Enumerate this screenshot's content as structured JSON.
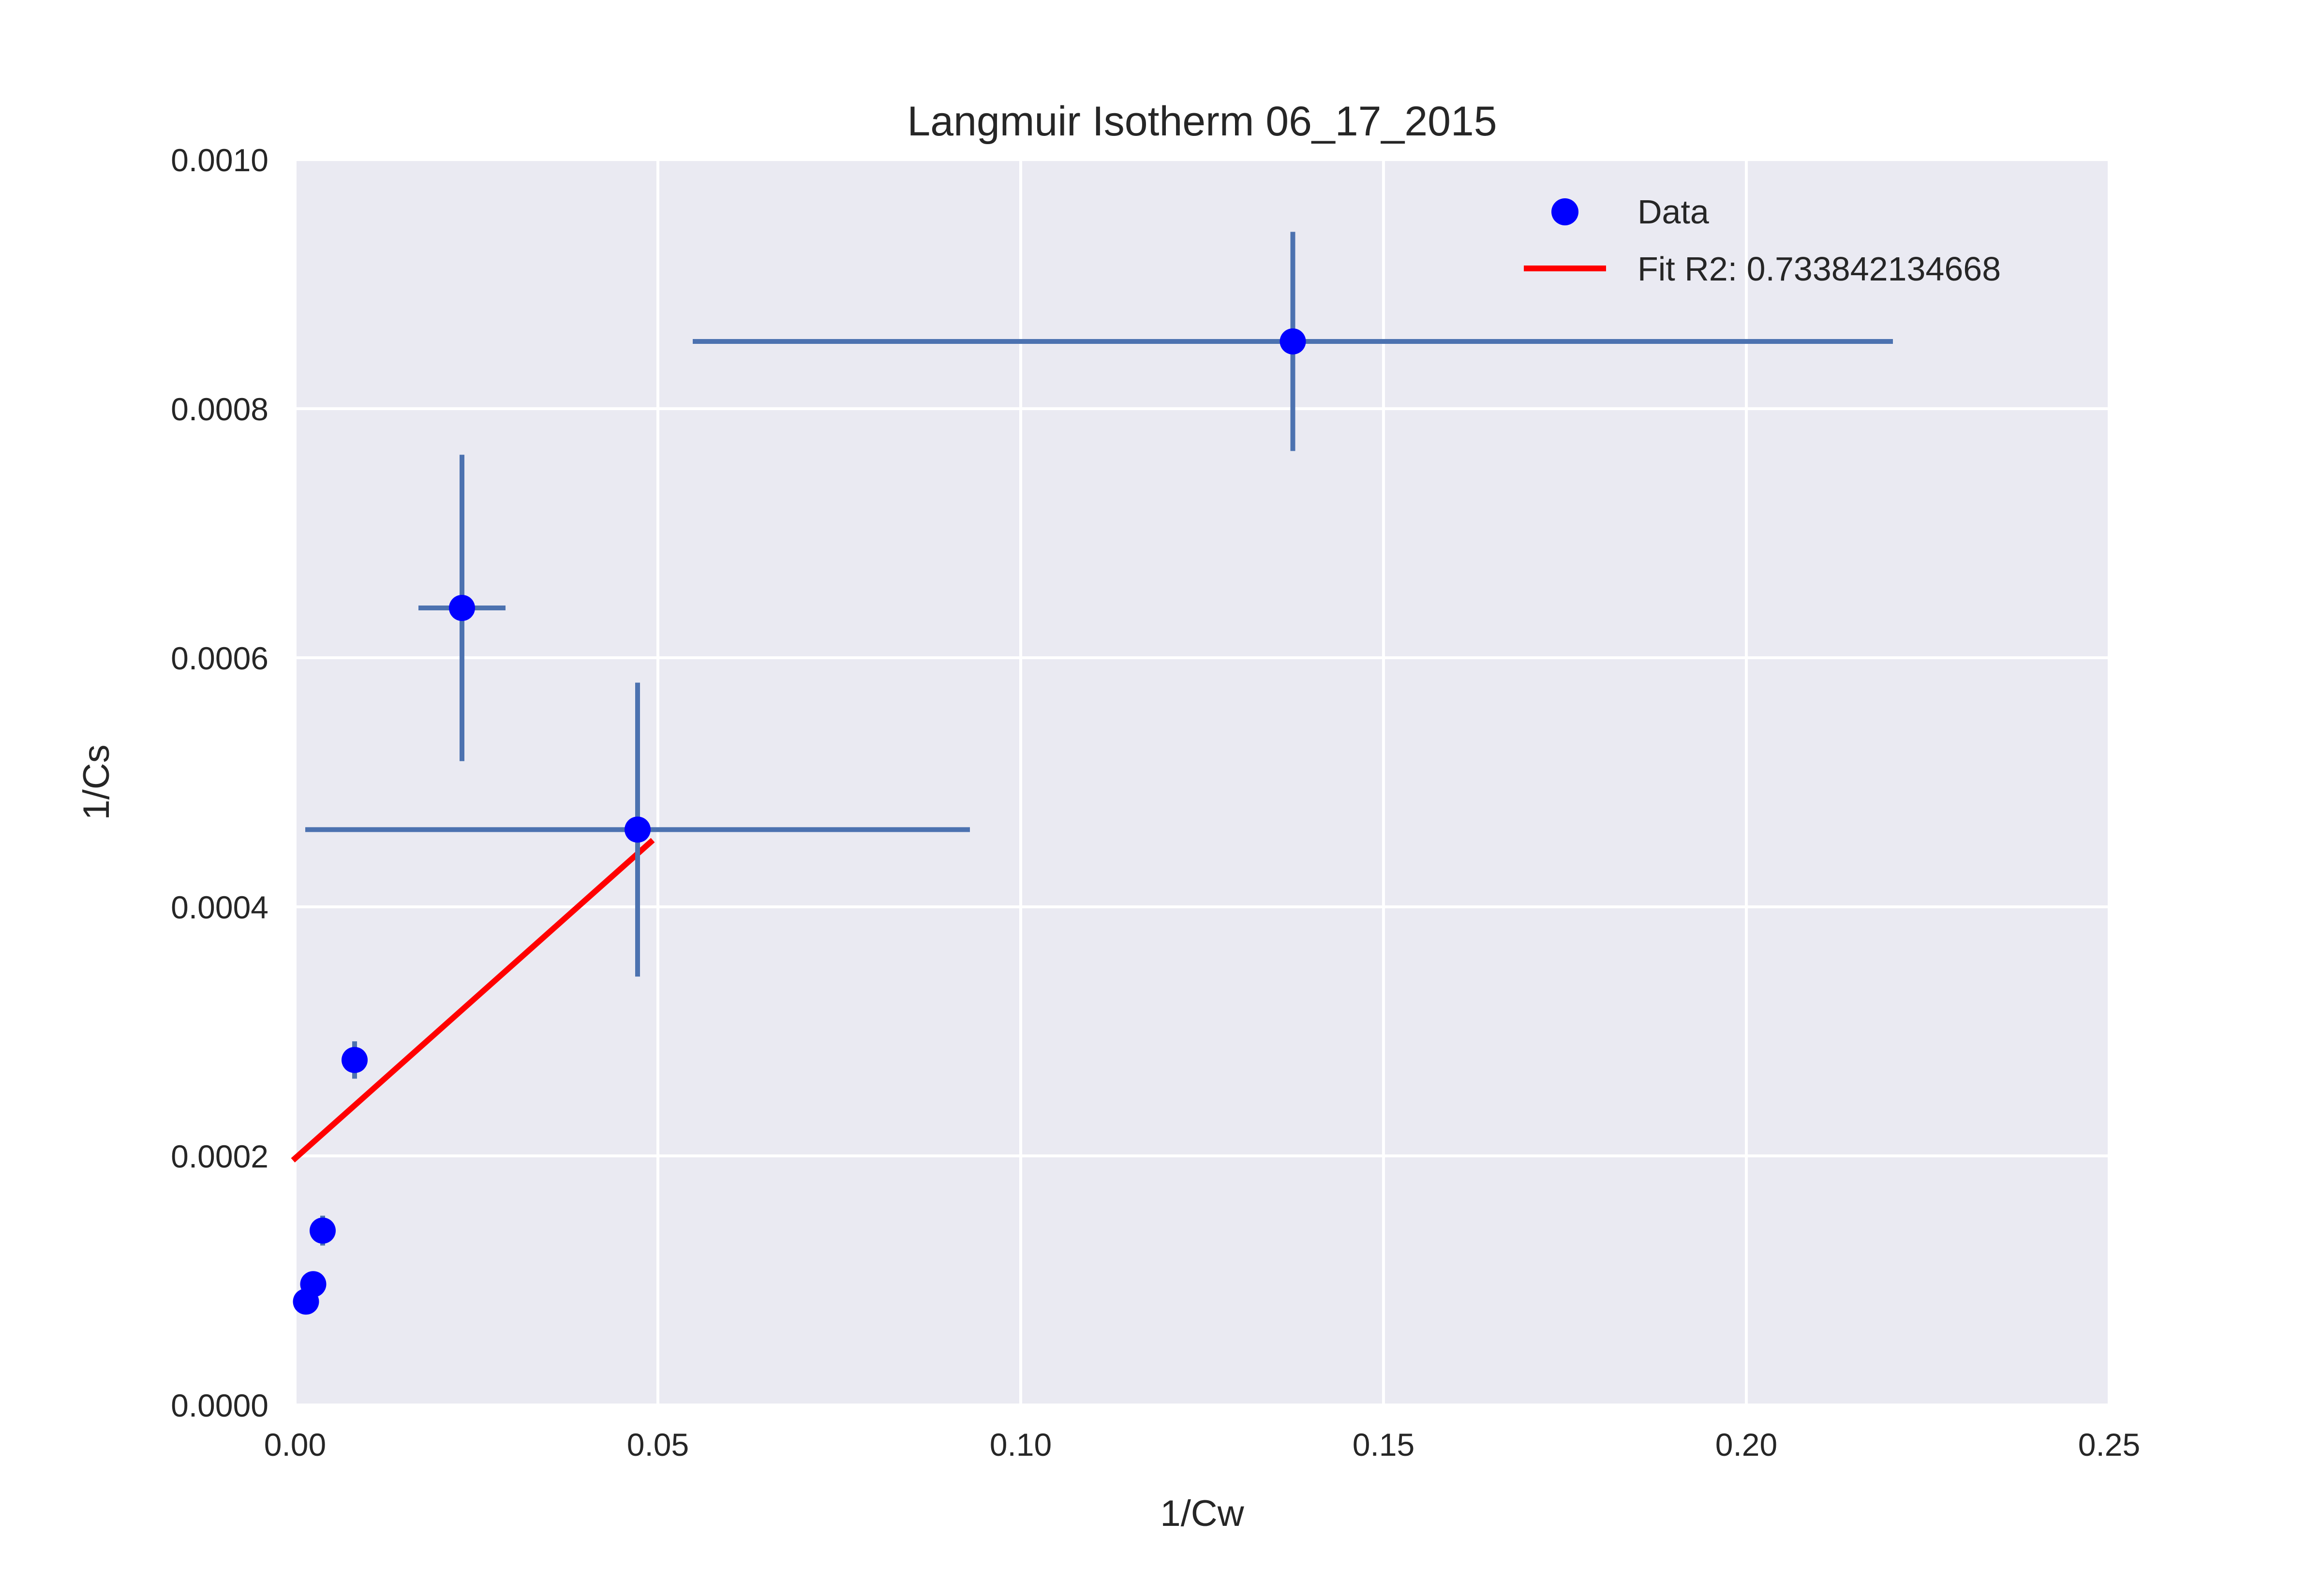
{
  "chart_data": {
    "type": "scatter",
    "title": "Langmuir Isotherm 06_17_2015",
    "xlabel": "1/Cw",
    "ylabel": "1/Cs",
    "xlim": [
      0,
      0.25
    ],
    "ylim": [
      0,
      0.001
    ],
    "x_ticks": [
      "0.00",
      "0.05",
      "0.10",
      "0.15",
      "0.20",
      "0.25"
    ],
    "y_ticks": [
      "0.0000",
      "0.0002",
      "0.0004",
      "0.0006",
      "0.0008",
      "0.0010"
    ],
    "grid": true,
    "legend_position": "top-right",
    "series": [
      {
        "name": "Data",
        "kind": "points_with_errorbars",
        "color": "#0000ff",
        "errorbar_color": "#4c72b0",
        "points": [
          {
            "x": 0.0015,
            "y": 8.3e-05,
            "xerr": 0.0002,
            "yerr": 5e-06
          },
          {
            "x": 0.0025,
            "y": 9.7e-05,
            "xerr": 0.0003,
            "yerr": 7e-06
          },
          {
            "x": 0.0038,
            "y": 0.00014,
            "xerr": 0.0005,
            "yerr": 1.2e-05
          },
          {
            "x": 0.0082,
            "y": 0.000277,
            "xerr": 0.0008,
            "yerr": 1.5e-05
          },
          {
            "x": 0.023,
            "y": 0.00064,
            "xerr": 0.006,
            "yerr": 0.000123
          },
          {
            "x": 0.0472,
            "y": 0.000462,
            "xerr": 0.0458,
            "yerr": 0.000118
          },
          {
            "x": 0.1375,
            "y": 0.000854,
            "xerr": 0.0827,
            "yerr": 8.8e-05
          }
        ]
      },
      {
        "name": "Fit R2: 0.733842134668",
        "kind": "line",
        "color": "#ff0000",
        "x": [
          0.0,
          0.049
        ],
        "y": [
          0.000198,
          0.000452
        ]
      }
    ]
  }
}
